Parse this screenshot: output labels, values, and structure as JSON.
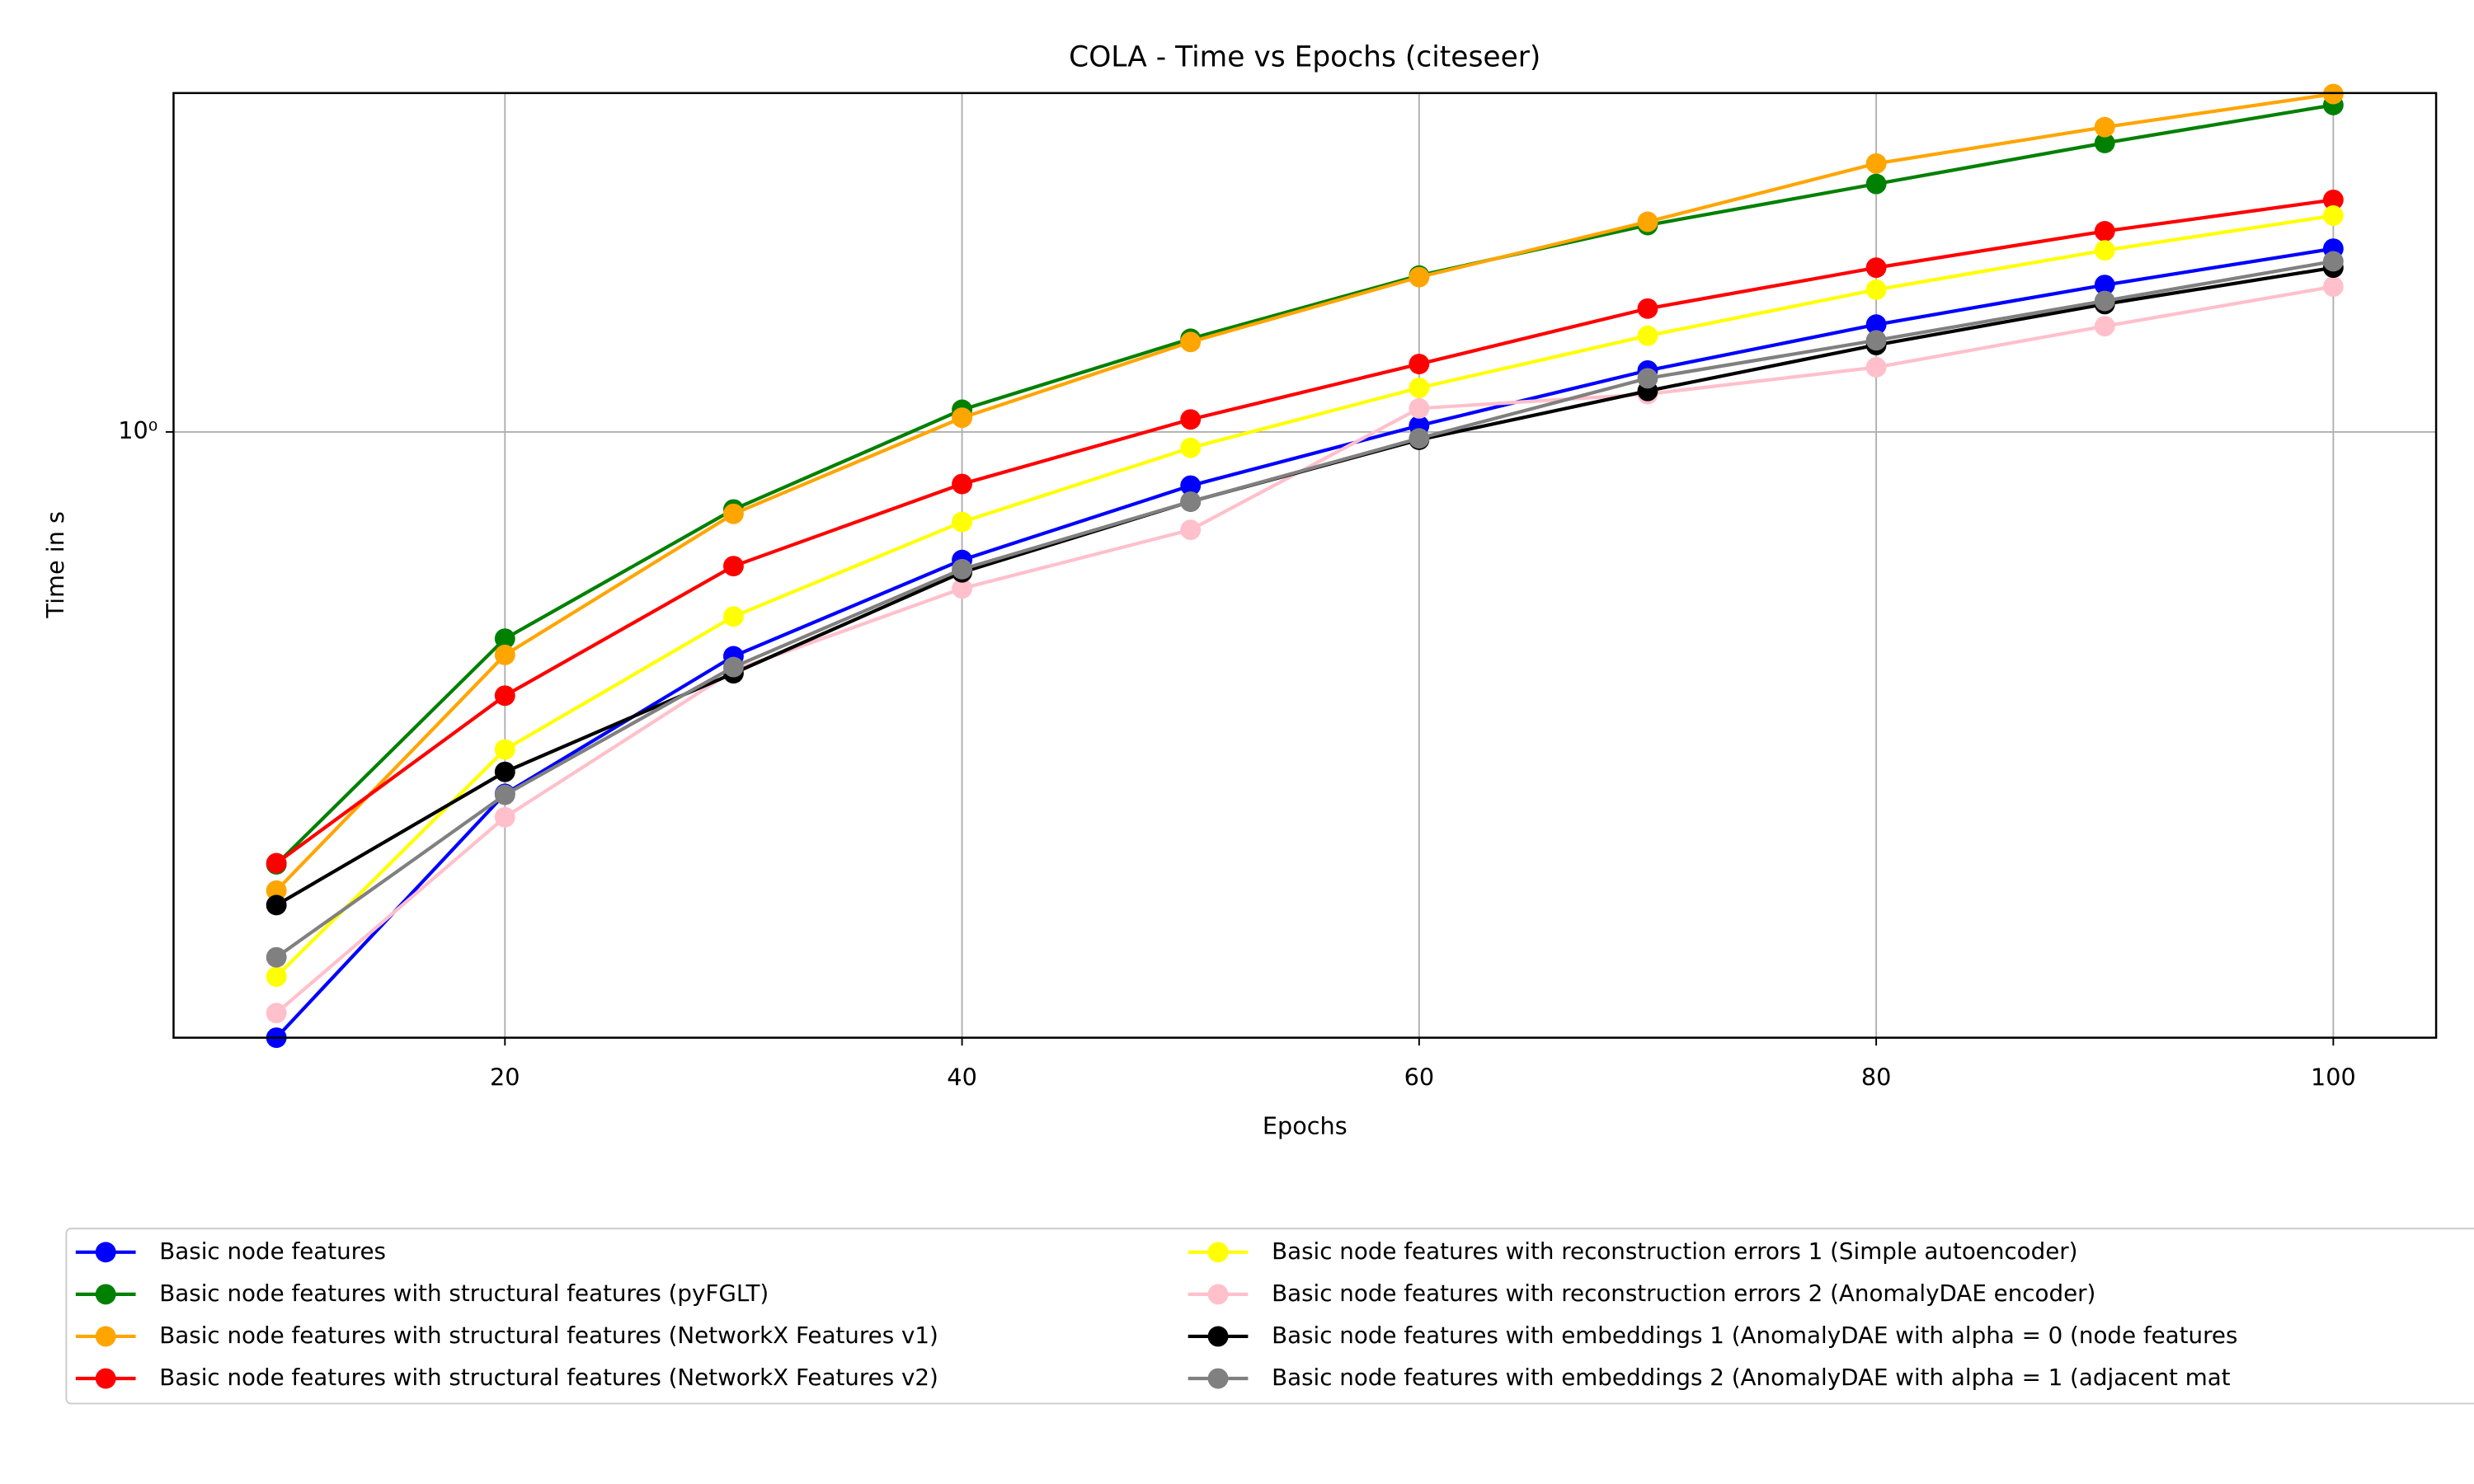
{
  "chart_data": {
    "type": "line",
    "title": "COLA - Time vs Epochs (citeseer)",
    "x_label": "Epochs",
    "y_label": "Time in s",
    "x": [
      10,
      20,
      30,
      40,
      50,
      60,
      70,
      80,
      90,
      100
    ],
    "xlim": [
      5.5,
      104.5
    ],
    "xticks": [
      20,
      40,
      60,
      80,
      100
    ],
    "ylim": [
      0.18,
      2.61
    ],
    "yticks": [
      {
        "value": 1,
        "label": "10⁰"
      }
    ],
    "yscale": "log",
    "grid": true,
    "series": [
      {
        "name": "Basic node features",
        "color": "#0000ff",
        "values": [
          0.18,
          0.359,
          0.53,
          0.696,
          0.859,
          1.018,
          1.19,
          1.355,
          1.516,
          1.68
        ]
      },
      {
        "name": "Basic node features with structural features (pyFGLT)",
        "color": "#008000",
        "values": [
          0.294,
          0.557,
          0.803,
          1.065,
          1.302,
          1.557,
          1.796,
          2.018,
          2.266,
          2.523
        ]
      },
      {
        "name": "Basic node features with structural features (NetworkX Features v1)",
        "color": "#ffa500",
        "values": [
          0.273,
          0.532,
          0.793,
          1.041,
          1.29,
          1.55,
          1.813,
          2.138,
          2.37,
          2.603
        ]
      },
      {
        "name": "Basic node features with structural features (NetworkX Features v2)",
        "color": "#ff0000",
        "values": [
          0.295,
          0.474,
          0.684,
          0.863,
          1.036,
          1.212,
          1.418,
          1.592,
          1.765,
          1.929
        ]
      },
      {
        "name": "Basic node features with reconstruction errors 1 (Simple autoencoder)",
        "color": "#ffff00",
        "values": [
          0.214,
          0.407,
          0.593,
          0.775,
          0.956,
          1.133,
          1.313,
          1.496,
          1.672,
          1.845
        ]
      },
      {
        "name": "Basic node features with reconstruction errors 2 (AnomalyDAE encoder)",
        "color": "#ffc0cb",
        "values": [
          0.193,
          0.336,
          0.509,
          0.642,
          0.758,
          1.069,
          1.113,
          1.201,
          1.349,
          1.509
        ]
      },
      {
        "name": "Basic node features with embeddings 1 (AnomalyDAE with alpha = 0 (node features",
        "color": "#000000",
        "values": [
          0.262,
          0.382,
          0.505,
          0.672,
          0.821,
          0.978,
          1.123,
          1.279,
          1.436,
          1.592
        ]
      },
      {
        "name": "Basic node features with embeddings 2 (AnomalyDAE with alpha = 1 (adjacent mat",
        "color": "#808080",
        "values": [
          0.226,
          0.358,
          0.514,
          0.678,
          0.821,
          0.982,
          1.164,
          1.296,
          1.449,
          1.621
        ]
      }
    ]
  }
}
